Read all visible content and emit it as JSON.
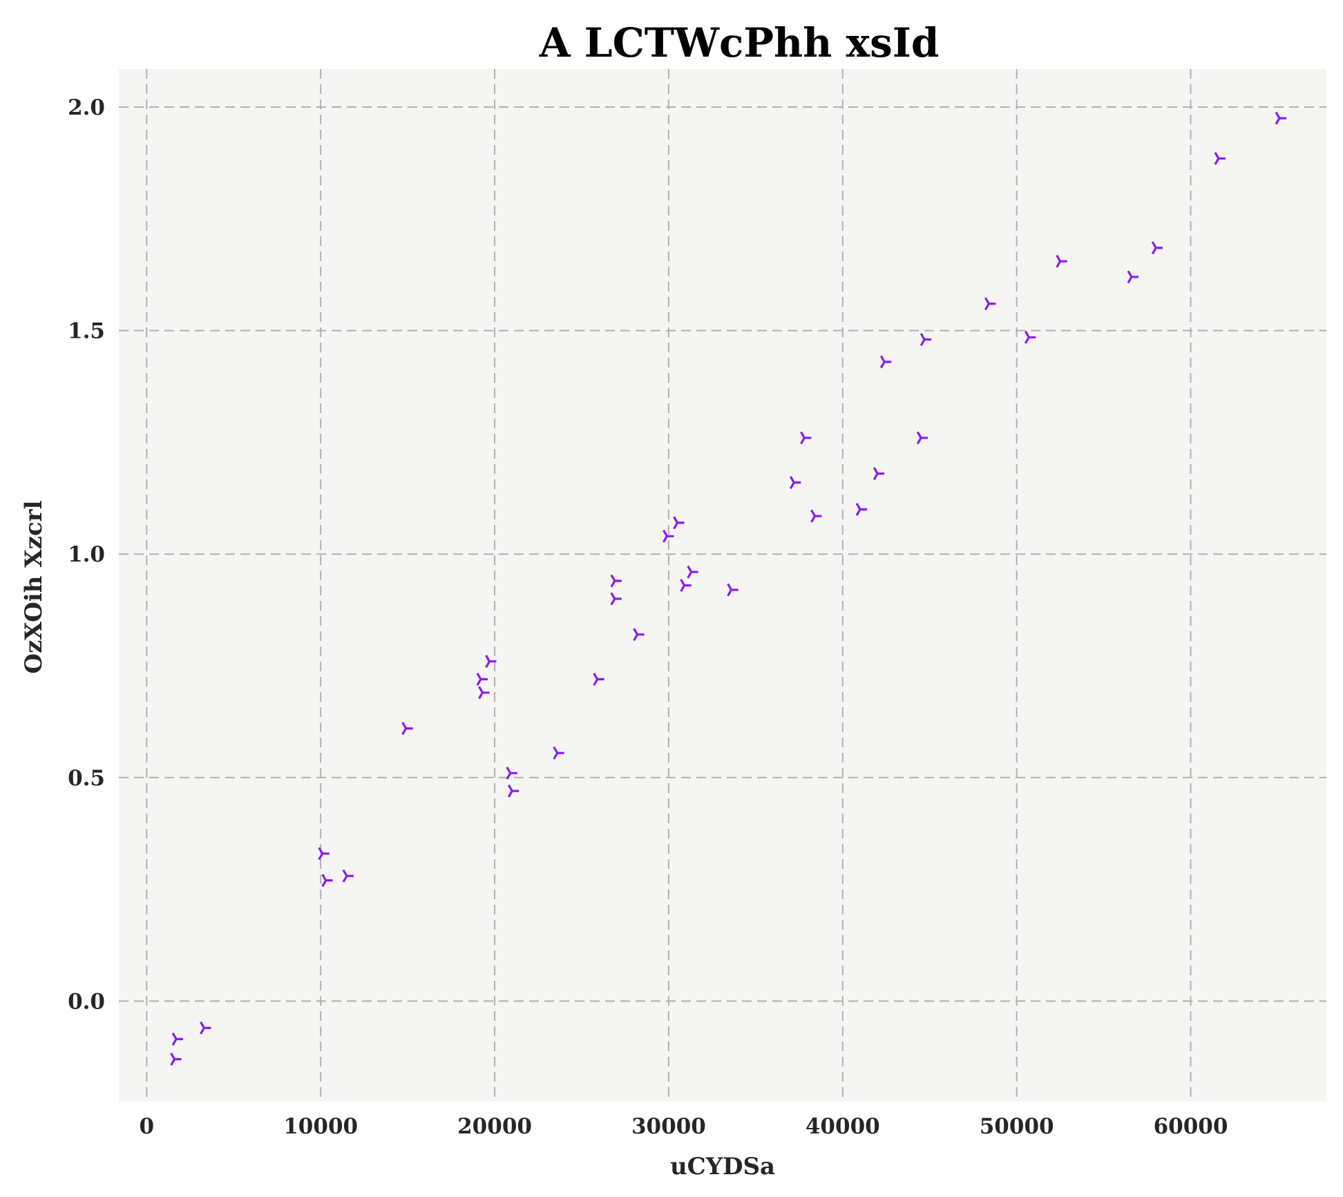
{
  "chart_data": {
    "type": "scatter",
    "title": "A LCTWcPhh xsId",
    "xlabel": "uCYDSa",
    "ylabel": "OzXOih Xzcrl",
    "xlim": [
      -1600,
      67800
    ],
    "ylim": [
      -0.225,
      2.085
    ],
    "xticks": [
      0,
      10000,
      20000,
      30000,
      40000,
      50000,
      60000
    ],
    "yticks": [
      0.0,
      0.5,
      1.0,
      1.5,
      2.0
    ],
    "xtick_labels": [
      "0",
      "10000",
      "20000",
      "30000",
      "40000",
      "50000",
      "60000"
    ],
    "ytick_labels": [
      "0.0",
      "0.5",
      "1.0",
      "1.5",
      "2.0"
    ],
    "grid": true,
    "marker": "tri_right",
    "colors": {
      "marker": "#8a1bf2",
      "plot_background": "#f5f5f3",
      "grid": "#b0b0b0"
    },
    "series": [
      {
        "points": [
          [
            1600,
            -0.13
          ],
          [
            1700,
            -0.085
          ],
          [
            3300,
            -0.06
          ],
          [
            10100,
            0.33
          ],
          [
            10300,
            0.27
          ],
          [
            11500,
            0.28
          ],
          [
            14900,
            0.61
          ],
          [
            19200,
            0.72
          ],
          [
            19300,
            0.69
          ],
          [
            19700,
            0.76
          ],
          [
            20900,
            0.51
          ],
          [
            21000,
            0.47
          ],
          [
            23600,
            0.555
          ],
          [
            25900,
            0.72
          ],
          [
            26900,
            0.94
          ],
          [
            26900,
            0.9
          ],
          [
            28200,
            0.82
          ],
          [
            29900,
            1.04
          ],
          [
            30500,
            1.07
          ],
          [
            30900,
            0.93
          ],
          [
            31300,
            0.96
          ],
          [
            33600,
            0.92
          ],
          [
            37200,
            1.16
          ],
          [
            37800,
            1.26
          ],
          [
            38400,
            1.085
          ],
          [
            41000,
            1.1
          ],
          [
            42000,
            1.18
          ],
          [
            42400,
            1.43
          ],
          [
            44500,
            1.26
          ],
          [
            44700,
            1.48
          ],
          [
            48400,
            1.56
          ],
          [
            50700,
            1.485
          ],
          [
            52500,
            1.655
          ],
          [
            56600,
            1.62
          ],
          [
            58000,
            1.685
          ],
          [
            61600,
            1.885
          ],
          [
            65100,
            1.975
          ]
        ]
      }
    ]
  }
}
